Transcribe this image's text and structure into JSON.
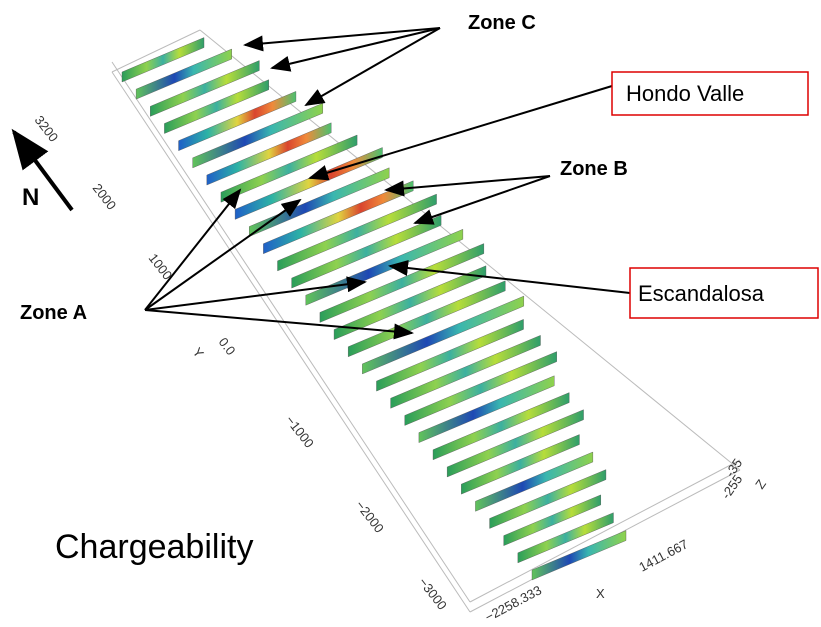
{
  "title": "Chargeability",
  "north": "N",
  "labels": {
    "zone_a": "Zone A",
    "zone_b": "Zone B",
    "zone_c": "Zone C",
    "hondo_valle": "Hondo Valle",
    "escandalosa": "Escandalosa"
  },
  "axes": {
    "y_ticks": [
      "3200",
      "2000",
      "1000",
      "0.0",
      "−1000",
      "−2000",
      "−3000"
    ],
    "y_label": "Y",
    "x_ticks": [
      "−2258.333",
      "1411.667"
    ],
    "x_label": "X",
    "z_ticks": [
      "-35",
      "-255"
    ],
    "z_label": "Z"
  }
}
